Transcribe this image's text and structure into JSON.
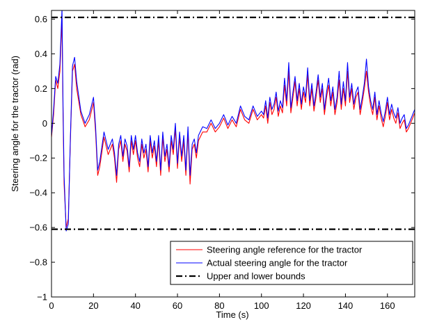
{
  "chart_data": {
    "type": "line",
    "title": "",
    "xlabel": "Time (s)",
    "ylabel": "Steering angle for the tractor (rad)",
    "xlim": [
      0,
      173
    ],
    "ylim": [
      -1,
      0.65
    ],
    "xticks": [
      0,
      20,
      40,
      60,
      80,
      100,
      120,
      140,
      160
    ],
    "yticks": [
      -1,
      -0.8,
      -0.6,
      -0.4,
      -0.2,
      0,
      0.2,
      0.4,
      0.6
    ],
    "xtick_labels": [
      "0",
      "20",
      "40",
      "60",
      "80",
      "100",
      "120",
      "140",
      "160"
    ],
    "ytick_labels": [
      "−1",
      "−0.8",
      "−0.6",
      "−0.4",
      "−0.2",
      "0",
      "0.2",
      "0.4",
      "0.6"
    ],
    "grid": false,
    "legend_position": "bottom-right",
    "series": [
      {
        "name": "Steering angle reference for the tractor",
        "color": "#ff0000",
        "style": "solid",
        "x": [
          0,
          1,
          2,
          3,
          4,
          5,
          5.5,
          6,
          7,
          8,
          9,
          10,
          11,
          12,
          14,
          16,
          18,
          20,
          21,
          22,
          23,
          25,
          27,
          29,
          30,
          31,
          32,
          33,
          34,
          35,
          36,
          37,
          38,
          39,
          40,
          41,
          42,
          43,
          44,
          45,
          46,
          47,
          48,
          49,
          50,
          51,
          52,
          53,
          54,
          55,
          56,
          57,
          58,
          59,
          60,
          61,
          62,
          63,
          64,
          65,
          66,
          67,
          68,
          69,
          70,
          72,
          74,
          76,
          78,
          80,
          82,
          84,
          86,
          88,
          90,
          92,
          94,
          96,
          98,
          100,
          101,
          102,
          103,
          104,
          105,
          106,
          107,
          108,
          109,
          110,
          111,
          112,
          113,
          114,
          115,
          116,
          117,
          118,
          119,
          120,
          121,
          122,
          123,
          124,
          125,
          126,
          127,
          128,
          129,
          130,
          131,
          132,
          133,
          134,
          135,
          136,
          137,
          138,
          139,
          140,
          141,
          142,
          143,
          144,
          145,
          146,
          147,
          148,
          149,
          150,
          151,
          152,
          153,
          154,
          155,
          156,
          157,
          158,
          159,
          160,
          161,
          162,
          163,
          164,
          165,
          166,
          167,
          168,
          169,
          170,
          171,
          172,
          173
        ],
        "y": [
          -0.08,
          0.05,
          0.25,
          0.2,
          0.3,
          0.6,
          0.05,
          -0.35,
          -0.6,
          -0.55,
          -0.1,
          0.3,
          0.34,
          0.2,
          0.05,
          -0.02,
          0.02,
          0.12,
          -0.05,
          -0.3,
          -0.25,
          -0.08,
          -0.18,
          -0.12,
          -0.2,
          -0.34,
          -0.15,
          -0.1,
          -0.22,
          -0.12,
          -0.16,
          -0.28,
          -0.1,
          -0.18,
          -0.1,
          -0.2,
          -0.25,
          -0.12,
          -0.2,
          -0.15,
          -0.28,
          -0.1,
          -0.2,
          -0.13,
          -0.25,
          -0.1,
          -0.3,
          -0.08,
          -0.22,
          -0.15,
          -0.28,
          -0.1,
          -0.18,
          -0.03,
          -0.26,
          -0.08,
          -0.22,
          -0.1,
          -0.3,
          -0.05,
          -0.35,
          -0.15,
          -0.12,
          -0.2,
          -0.1,
          -0.05,
          -0.05,
          0.0,
          -0.05,
          -0.02,
          0.03,
          -0.03,
          0.02,
          -0.02,
          0.08,
          0.02,
          0.0,
          0.08,
          0.02,
          0.05,
          0.03,
          0.1,
          0.0,
          0.12,
          0.05,
          0.08,
          0.15,
          0.04,
          0.1,
          0.06,
          0.22,
          0.1,
          0.3,
          0.06,
          0.15,
          0.24,
          0.1,
          0.2,
          0.08,
          0.18,
          0.12,
          0.28,
          0.1,
          0.2,
          0.07,
          0.15,
          0.25,
          0.12,
          0.2,
          0.05,
          0.15,
          0.22,
          0.1,
          0.18,
          0.05,
          0.12,
          0.25,
          0.08,
          0.2,
          0.1,
          0.3,
          0.12,
          0.2,
          0.08,
          0.15,
          0.18,
          0.05,
          0.12,
          0.2,
          0.3,
          0.18,
          0.1,
          0.05,
          0.15,
          0.02,
          0.1,
          0.03,
          -0.02,
          0.04,
          0.12,
          0.02,
          0.08,
          0.03,
          0.0,
          0.06,
          -0.03,
          0.0,
          0.02,
          -0.05,
          -0.03,
          0.0,
          0.03,
          0.06
        ]
      },
      {
        "name": "Actual steering angle for the tractor",
        "color": "#0000ff",
        "style": "solid",
        "x": [
          0,
          1,
          2,
          3,
          4,
          5,
          5.5,
          6,
          7,
          8,
          9,
          10,
          11,
          12,
          14,
          16,
          18,
          20,
          21,
          22,
          23,
          25,
          27,
          29,
          30,
          31,
          32,
          33,
          34,
          35,
          36,
          37,
          38,
          39,
          40,
          41,
          42,
          43,
          44,
          45,
          46,
          47,
          48,
          49,
          50,
          51,
          52,
          53,
          54,
          55,
          56,
          57,
          58,
          59,
          60,
          61,
          62,
          63,
          64,
          65,
          66,
          67,
          68,
          69,
          70,
          72,
          74,
          76,
          78,
          80,
          82,
          84,
          86,
          88,
          90,
          92,
          94,
          96,
          98,
          100,
          101,
          102,
          103,
          104,
          105,
          106,
          107,
          108,
          109,
          110,
          111,
          112,
          113,
          114,
          115,
          116,
          117,
          118,
          119,
          120,
          121,
          122,
          123,
          124,
          125,
          126,
          127,
          128,
          129,
          130,
          131,
          132,
          133,
          134,
          135,
          136,
          137,
          138,
          139,
          140,
          141,
          142,
          143,
          144,
          145,
          146,
          147,
          148,
          149,
          150,
          151,
          152,
          153,
          154,
          155,
          156,
          157,
          158,
          159,
          160,
          161,
          162,
          163,
          164,
          165,
          166,
          167,
          168,
          169,
          170,
          171,
          172,
          173
        ],
        "y": [
          -0.07,
          0.08,
          0.27,
          0.23,
          0.34,
          0.66,
          0.1,
          -0.3,
          -0.62,
          -0.58,
          -0.08,
          0.33,
          0.38,
          0.24,
          0.07,
          0.0,
          0.05,
          0.15,
          -0.02,
          -0.27,
          -0.22,
          -0.05,
          -0.15,
          -0.09,
          -0.17,
          -0.3,
          -0.12,
          -0.07,
          -0.19,
          -0.09,
          -0.13,
          -0.25,
          -0.07,
          -0.15,
          -0.07,
          -0.17,
          -0.22,
          -0.09,
          -0.17,
          -0.12,
          -0.25,
          -0.07,
          -0.17,
          -0.1,
          -0.22,
          -0.07,
          -0.27,
          -0.05,
          -0.19,
          -0.12,
          -0.25,
          -0.07,
          -0.15,
          0.0,
          -0.23,
          -0.05,
          -0.19,
          -0.07,
          -0.27,
          -0.02,
          -0.3,
          -0.12,
          -0.09,
          -0.17,
          -0.07,
          -0.02,
          -0.03,
          0.02,
          -0.03,
          0.0,
          0.05,
          -0.01,
          0.04,
          0.0,
          0.1,
          0.04,
          0.02,
          0.1,
          0.04,
          0.07,
          0.05,
          0.13,
          0.03,
          0.15,
          0.08,
          0.11,
          0.18,
          0.07,
          0.13,
          0.09,
          0.26,
          0.13,
          0.35,
          0.09,
          0.18,
          0.27,
          0.13,
          0.23,
          0.11,
          0.21,
          0.15,
          0.32,
          0.13,
          0.23,
          0.1,
          0.18,
          0.28,
          0.15,
          0.23,
          0.08,
          0.18,
          0.26,
          0.13,
          0.21,
          0.08,
          0.15,
          0.3,
          0.11,
          0.24,
          0.13,
          0.35,
          0.15,
          0.23,
          0.11,
          0.18,
          0.21,
          0.08,
          0.15,
          0.23,
          0.37,
          0.21,
          0.13,
          0.08,
          0.18,
          0.05,
          0.13,
          0.06,
          0.01,
          0.07,
          0.15,
          0.05,
          0.11,
          0.06,
          0.03,
          0.09,
          0.0,
          0.03,
          0.05,
          -0.03,
          -0.01,
          0.02,
          0.05,
          0.08
        ]
      },
      {
        "name": "Upper and lower bounds",
        "color": "#000000",
        "style": "dashdot",
        "bounds": [
          0.61,
          -0.61
        ]
      }
    ]
  }
}
